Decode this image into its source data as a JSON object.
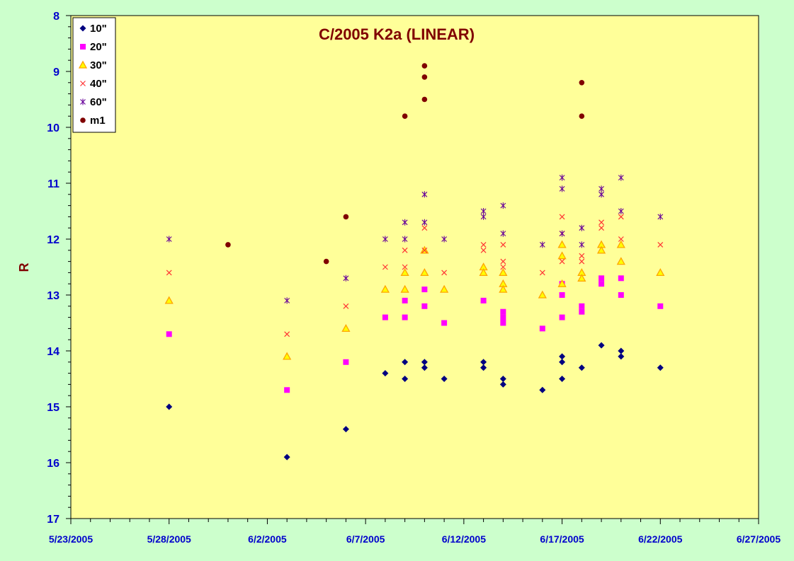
{
  "chart_data": {
    "type": "scatter",
    "title": "C/2005 K2a (LINEAR)",
    "xlabel": "",
    "ylabel": "R",
    "xlim": [
      "5/23/2005",
      "6/27/2005"
    ],
    "ylim": [
      8,
      17
    ],
    "y_inverted": true,
    "x_ticks": [
      "5/23/2005",
      "5/28/2005",
      "6/2/2005",
      "6/7/2005",
      "6/12/2005",
      "6/17/2005",
      "6/22/2005",
      "6/27/2005"
    ],
    "y_ticks": [
      "8",
      "9",
      "10",
      "11",
      "12",
      "13",
      "14",
      "15",
      "16",
      "17"
    ],
    "grid": false,
    "legend_position": "top-left",
    "series": [
      {
        "name": "10\"",
        "marker": "diamond",
        "color": "#000080",
        "points": [
          [
            "5/28/2005",
            15.0
          ],
          [
            "6/3/2005",
            15.9
          ],
          [
            "6/6/2005",
            15.4
          ],
          [
            "6/8/2005",
            14.4
          ],
          [
            "6/9/2005",
            14.2
          ],
          [
            "6/9/2005",
            14.5
          ],
          [
            "6/10/2005",
            14.2
          ],
          [
            "6/10/2005",
            14.3
          ],
          [
            "6/11/2005",
            14.5
          ],
          [
            "6/13/2005",
            14.2
          ],
          [
            "6/13/2005",
            14.3
          ],
          [
            "6/14/2005",
            14.5
          ],
          [
            "6/14/2005",
            14.6
          ],
          [
            "6/16/2005",
            14.7
          ],
          [
            "6/17/2005",
            14.1
          ],
          [
            "6/17/2005",
            14.2
          ],
          [
            "6/17/2005",
            14.5
          ],
          [
            "6/18/2005",
            14.3
          ],
          [
            "6/19/2005",
            13.9
          ],
          [
            "6/20/2005",
            14.0
          ],
          [
            "6/20/2005",
            14.1
          ],
          [
            "6/22/2005",
            14.3
          ]
        ]
      },
      {
        "name": "20\"",
        "marker": "square",
        "color": "#ff00ff",
        "points": [
          [
            "5/28/2005",
            13.7
          ],
          [
            "6/3/2005",
            14.7
          ],
          [
            "6/6/2005",
            14.2
          ],
          [
            "6/8/2005",
            13.4
          ],
          [
            "6/9/2005",
            13.1
          ],
          [
            "6/9/2005",
            13.4
          ],
          [
            "6/10/2005",
            12.9
          ],
          [
            "6/10/2005",
            13.2
          ],
          [
            "6/11/2005",
            13.5
          ],
          [
            "6/13/2005",
            13.1
          ],
          [
            "6/14/2005",
            13.3
          ],
          [
            "6/14/2005",
            13.4
          ],
          [
            "6/14/2005",
            13.5
          ],
          [
            "6/16/2005",
            13.6
          ],
          [
            "6/17/2005",
            12.8
          ],
          [
            "6/17/2005",
            13.0
          ],
          [
            "6/17/2005",
            13.4
          ],
          [
            "6/18/2005",
            13.2
          ],
          [
            "6/18/2005",
            13.3
          ],
          [
            "6/19/2005",
            12.7
          ],
          [
            "6/19/2005",
            12.8
          ],
          [
            "6/20/2005",
            12.7
          ],
          [
            "6/20/2005",
            13.0
          ],
          [
            "6/22/2005",
            13.2
          ]
        ]
      },
      {
        "name": "30\"",
        "marker": "triangle",
        "color": "#ffa500",
        "points": [
          [
            "5/28/2005",
            13.1
          ],
          [
            "6/3/2005",
            14.1
          ],
          [
            "6/6/2005",
            13.6
          ],
          [
            "6/8/2005",
            12.9
          ],
          [
            "6/9/2005",
            12.6
          ],
          [
            "6/9/2005",
            12.9
          ],
          [
            "6/10/2005",
            12.2
          ],
          [
            "6/10/2005",
            12.6
          ],
          [
            "6/11/2005",
            12.9
          ],
          [
            "6/13/2005",
            12.5
          ],
          [
            "6/13/2005",
            12.6
          ],
          [
            "6/14/2005",
            12.6
          ],
          [
            "6/14/2005",
            12.8
          ],
          [
            "6/14/2005",
            12.9
          ],
          [
            "6/16/2005",
            13.0
          ],
          [
            "6/17/2005",
            12.1
          ],
          [
            "6/17/2005",
            12.3
          ],
          [
            "6/17/2005",
            12.8
          ],
          [
            "6/18/2005",
            12.6
          ],
          [
            "6/18/2005",
            12.7
          ],
          [
            "6/19/2005",
            12.1
          ],
          [
            "6/19/2005",
            12.2
          ],
          [
            "6/20/2005",
            12.1
          ],
          [
            "6/20/2005",
            12.4
          ],
          [
            "6/22/2005",
            12.6
          ]
        ]
      },
      {
        "name": "40\"",
        "marker": "x",
        "color": "#ff3333",
        "points": [
          [
            "5/28/2005",
            12.6
          ],
          [
            "6/3/2005",
            13.7
          ],
          [
            "6/6/2005",
            13.2
          ],
          [
            "6/8/2005",
            12.5
          ],
          [
            "6/9/2005",
            12.2
          ],
          [
            "6/9/2005",
            12.5
          ],
          [
            "6/10/2005",
            11.8
          ],
          [
            "6/10/2005",
            12.2
          ],
          [
            "6/11/2005",
            12.6
          ],
          [
            "6/13/2005",
            12.1
          ],
          [
            "6/13/2005",
            12.2
          ],
          [
            "6/14/2005",
            12.1
          ],
          [
            "6/14/2005",
            12.4
          ],
          [
            "6/14/2005",
            12.5
          ],
          [
            "6/16/2005",
            12.6
          ],
          [
            "6/17/2005",
            11.6
          ],
          [
            "6/17/2005",
            11.9
          ],
          [
            "6/17/2005",
            12.4
          ],
          [
            "6/18/2005",
            12.3
          ],
          [
            "6/18/2005",
            12.4
          ],
          [
            "6/19/2005",
            11.7
          ],
          [
            "6/19/2005",
            11.8
          ],
          [
            "6/20/2005",
            11.6
          ],
          [
            "6/20/2005",
            12.0
          ],
          [
            "6/22/2005",
            12.1
          ]
        ]
      },
      {
        "name": "60\"",
        "marker": "star",
        "color": "#660099",
        "points": [
          [
            "5/28/2005",
            12.0
          ],
          [
            "6/3/2005",
            13.1
          ],
          [
            "6/6/2005",
            12.7
          ],
          [
            "6/8/2005",
            12.0
          ],
          [
            "6/9/2005",
            11.7
          ],
          [
            "6/9/2005",
            12.0
          ],
          [
            "6/10/2005",
            11.2
          ],
          [
            "6/10/2005",
            11.7
          ],
          [
            "6/11/2005",
            12.0
          ],
          [
            "6/13/2005",
            11.5
          ],
          [
            "6/13/2005",
            11.6
          ],
          [
            "6/14/2005",
            11.4
          ],
          [
            "6/14/2005",
            11.9
          ],
          [
            "6/16/2005",
            12.1
          ],
          [
            "6/17/2005",
            10.9
          ],
          [
            "6/17/2005",
            11.1
          ],
          [
            "6/17/2005",
            11.9
          ],
          [
            "6/18/2005",
            11.8
          ],
          [
            "6/18/2005",
            12.1
          ],
          [
            "6/19/2005",
            11.1
          ],
          [
            "6/19/2005",
            11.2
          ],
          [
            "6/20/2005",
            10.9
          ],
          [
            "6/20/2005",
            11.5
          ],
          [
            "6/22/2005",
            11.6
          ]
        ]
      },
      {
        "name": "m1",
        "marker": "circle",
        "color": "#800000",
        "points": [
          [
            "5/31/2005",
            12.1
          ],
          [
            "6/5/2005",
            12.4
          ],
          [
            "6/6/2005",
            11.6
          ],
          [
            "6/9/2005",
            9.8
          ],
          [
            "6/10/2005",
            8.9
          ],
          [
            "6/10/2005",
            9.1
          ],
          [
            "6/10/2005",
            9.5
          ],
          [
            "6/18/2005",
            9.2
          ],
          [
            "6/18/2005",
            9.8
          ]
        ]
      }
    ]
  }
}
